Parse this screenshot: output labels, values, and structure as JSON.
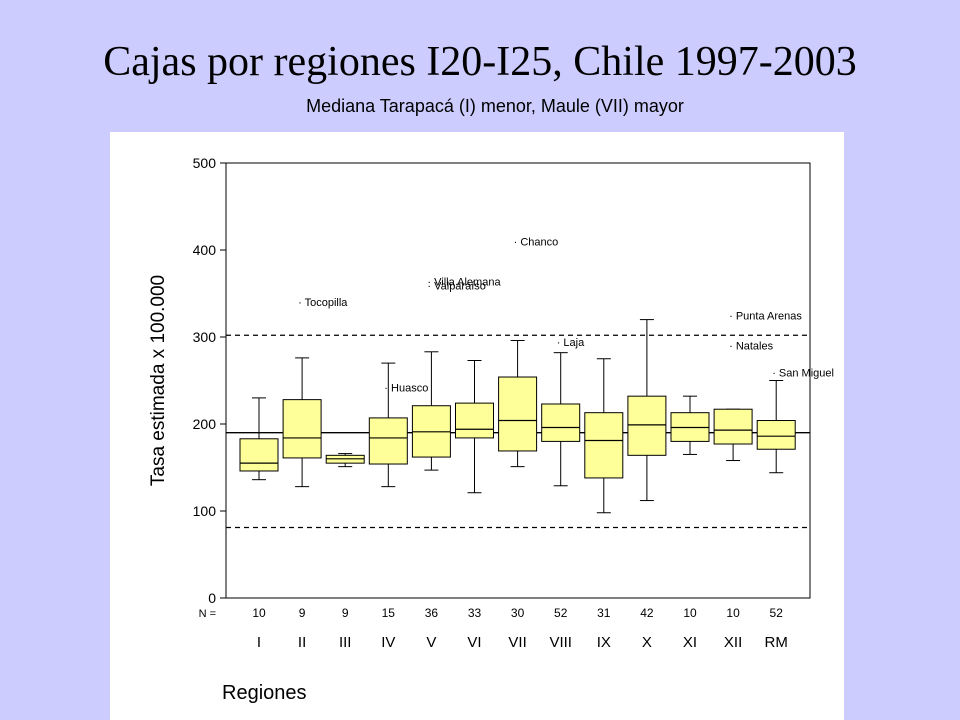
{
  "title": "Cajas por regiones I20-I25, Chile 1997-2003",
  "subtitle": "Mediana Tarapacá (I) menor, Maule (VII) mayor",
  "colors": {
    "background": "#ccccff",
    "box_fill": "#ffff99",
    "panel": "#ffffff",
    "line": "#000000"
  },
  "chart_data": {
    "type": "box",
    "ylabel": "Tasa estimada x 100.000",
    "xlabel": "Regiones",
    "ylim": [
      0,
      500
    ],
    "yticks": [
      0,
      100,
      200,
      300,
      400,
      500
    ],
    "n_label": "N =",
    "grid": false,
    "reference_lines": [
      {
        "value": 190,
        "style": "solid"
      },
      {
        "value": 302,
        "style": "dashed"
      },
      {
        "value": 81,
        "style": "dashed"
      }
    ],
    "categories": [
      "I",
      "II",
      "III",
      "IV",
      "V",
      "VI",
      "VII",
      "VIII",
      "IX",
      "X",
      "XI",
      "XII",
      "RM"
    ],
    "n": [
      10,
      9,
      9,
      15,
      36,
      33,
      30,
      52,
      31,
      42,
      10,
      10,
      52
    ],
    "boxes": [
      {
        "min": 136,
        "q1": 146,
        "median": 155,
        "q3": 183,
        "max": 230
      },
      {
        "min": 128,
        "q1": 161,
        "median": 184,
        "q3": 228,
        "max": 276
      },
      {
        "min": 151,
        "q1": 155,
        "median": 160,
        "q3": 164,
        "max": 166
      },
      {
        "min": 128,
        "q1": 154,
        "median": 184,
        "q3": 207,
        "max": 270
      },
      {
        "min": 147,
        "q1": 162,
        "median": 191,
        "q3": 221,
        "max": 283
      },
      {
        "min": 121,
        "q1": 184,
        "median": 194,
        "q3": 224,
        "max": 273
      },
      {
        "min": 151,
        "q1": 169,
        "median": 204,
        "q3": 254,
        "max": 296
      },
      {
        "min": 129,
        "q1": 180,
        "median": 196,
        "q3": 223,
        "max": 282
      },
      {
        "min": 98,
        "q1": 138,
        "median": 181,
        "q3": 213,
        "max": 275
      },
      {
        "min": 112,
        "q1": 164,
        "median": 199,
        "q3": 232,
        "max": 320
      },
      {
        "min": 165,
        "q1": 180,
        "median": 196,
        "q3": 213,
        "max": 232
      },
      {
        "min": 158,
        "q1": 177,
        "median": 193,
        "q3": 217,
        "max": 217
      },
      {
        "min": 144,
        "q1": 171,
        "median": 186,
        "q3": 204,
        "max": 250
      }
    ],
    "outliers": [
      {
        "region": "II",
        "value": 340,
        "label": "Tocopilla"
      },
      {
        "region": "IV",
        "value": 242,
        "label": "Huasco"
      },
      {
        "region": "V",
        "value": 364,
        "label": "Villa Alemana"
      },
      {
        "region": "V",
        "value": 359,
        "label": "Valparaíso"
      },
      {
        "region": "VII",
        "value": 410,
        "label": "Chanco"
      },
      {
        "region": "VIII",
        "value": 294,
        "label": "Laja"
      },
      {
        "region": "XII",
        "value": 325,
        "label": "Punta Arenas"
      },
      {
        "region": "XII",
        "value": 290,
        "label": "Natales"
      },
      {
        "region": "RM",
        "value": 259,
        "label": "San Miguel"
      }
    ]
  }
}
